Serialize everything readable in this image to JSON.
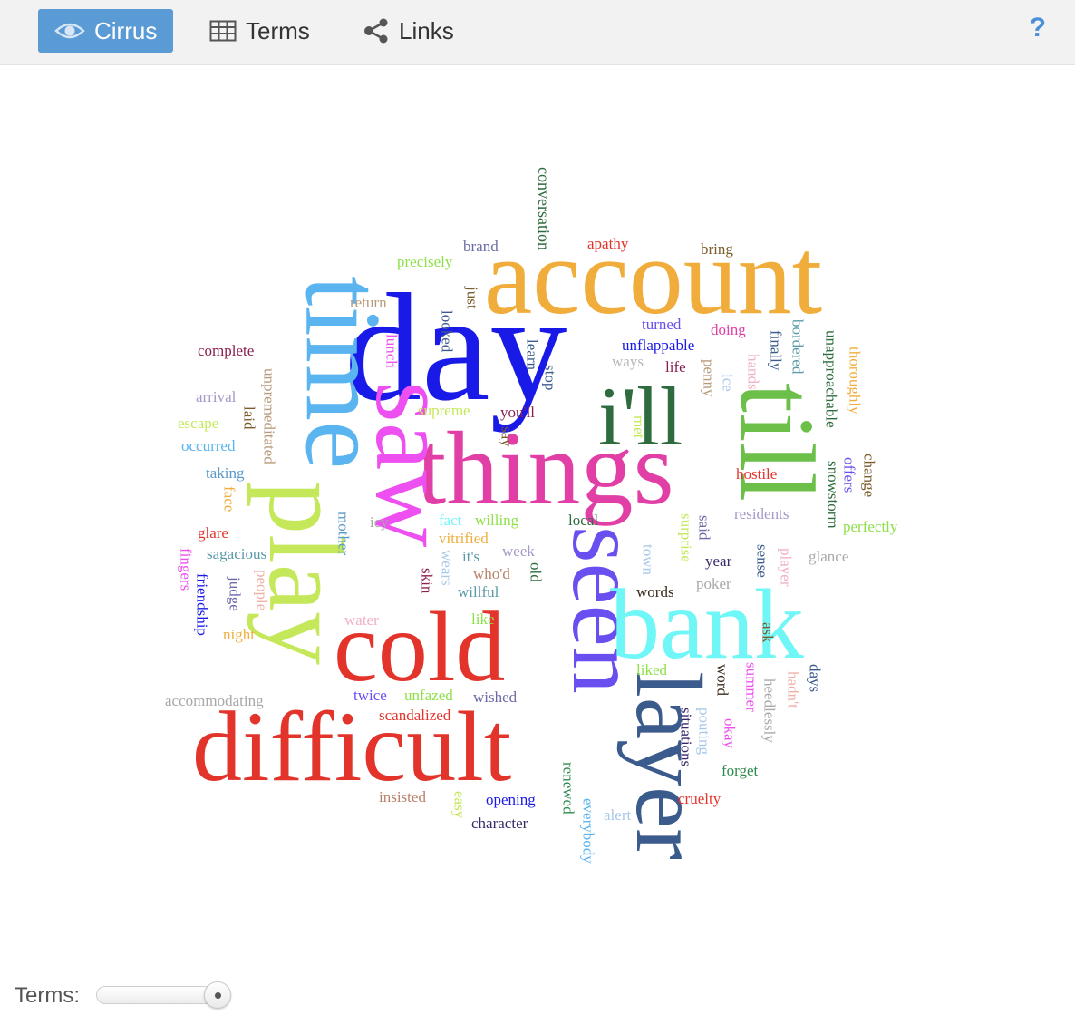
{
  "toolbar": {
    "tabs": [
      {
        "label": "Cirrus",
        "icon": "eye-icon",
        "active": true
      },
      {
        "label": "Terms",
        "icon": "table-icon",
        "active": false
      },
      {
        "label": "Links",
        "icon": "share-icon",
        "active": false
      }
    ],
    "help_label": "?"
  },
  "colors": {
    "active_tab": "#5b9bd5",
    "toolbar_bg": "#f2f2f2",
    "help": "#4a90d9"
  },
  "cloud": {
    "words": [
      {
        "text": "day",
        "color": "#1a1ae8"
      },
      {
        "text": "account",
        "color": "#f0ad3c"
      },
      {
        "text": "time",
        "color": "#5ab4f0"
      },
      {
        "text": "things",
        "color": "#e23fa6"
      },
      {
        "text": "i'll",
        "color": "#2e6b3e"
      },
      {
        "text": "till",
        "color": "#6cc04a"
      },
      {
        "text": "saw",
        "color": "#ee4ff0"
      },
      {
        "text": "play",
        "color": "#c5e85a"
      },
      {
        "text": "seen",
        "color": "#6a4ff0"
      },
      {
        "text": "bank",
        "color": "#6ff7f7"
      },
      {
        "text": "cold",
        "color": "#e3342c"
      },
      {
        "text": "difficult",
        "color": "#e3342c"
      },
      {
        "text": "layer",
        "color": "#3a5b8c"
      },
      {
        "text": "conversation",
        "color": "#2e6b3e"
      },
      {
        "text": "brand",
        "color": "#6a6aa8"
      },
      {
        "text": "apathy",
        "color": "#e3342c"
      },
      {
        "text": "bring",
        "color": "#7a5b2a"
      },
      {
        "text": "precisely",
        "color": "#8ee04a"
      },
      {
        "text": "return",
        "color": "#b89a7a"
      },
      {
        "text": "just",
        "color": "#7a5b2a"
      },
      {
        "text": "turned",
        "color": "#6a4ff0"
      },
      {
        "text": "doing",
        "color": "#e23fa6"
      },
      {
        "text": "complete",
        "color": "#8a2050"
      },
      {
        "text": "lunch",
        "color": "#ee4ff0"
      },
      {
        "text": "looked",
        "color": "#3a5b8c"
      },
      {
        "text": "learn",
        "color": "#3a5b8c"
      },
      {
        "text": "unflappable",
        "color": "#1a1ae8"
      },
      {
        "text": "finally",
        "color": "#3a5b8c"
      },
      {
        "text": "bordered",
        "color": "#5a9aa8"
      },
      {
        "text": "unapproachable",
        "color": "#2e6b3e"
      },
      {
        "text": "thoroughly",
        "color": "#f0ad3c"
      },
      {
        "text": "ways",
        "color": "#b8b8b8"
      },
      {
        "text": "life",
        "color": "#8a2050"
      },
      {
        "text": "penny",
        "color": "#b89a7a"
      },
      {
        "text": "ice",
        "color": "#a8c8e8"
      },
      {
        "text": "hands",
        "color": "#f0b0c8"
      },
      {
        "text": "stop",
        "color": "#3a5b8c"
      },
      {
        "text": "arrival",
        "color": "#a898c8"
      },
      {
        "text": "unpremeditated",
        "color": "#b89a7a"
      },
      {
        "text": "supreme",
        "color": "#c5e85a"
      },
      {
        "text": "you'll",
        "color": "#8a2050"
      },
      {
        "text": "laid",
        "color": "#7a5b2a"
      },
      {
        "text": "escape",
        "color": "#c5e85a"
      },
      {
        "text": "met",
        "color": "#c5e85a"
      },
      {
        "text": "say",
        "color": "#7a5b2a"
      },
      {
        "text": "occurred",
        "color": "#5ab4f0"
      },
      {
        "text": "hostile",
        "color": "#e3342c"
      },
      {
        "text": "snowstorm",
        "color": "#2e6b3e"
      },
      {
        "text": "offers",
        "color": "#6a4ff0"
      },
      {
        "text": "change",
        "color": "#7a5b2a"
      },
      {
        "text": "taking",
        "color": "#5a9ac8"
      },
      {
        "text": "face",
        "color": "#f0ad3c"
      },
      {
        "text": "residents",
        "color": "#a898c8"
      },
      {
        "text": "icy",
        "color": "#a8a8a8"
      },
      {
        "text": "fact",
        "color": "#6ff7f7"
      },
      {
        "text": "willing",
        "color": "#8ee04a"
      },
      {
        "text": "local",
        "color": "#2e6b3e"
      },
      {
        "text": "perfectly",
        "color": "#8ee04a"
      },
      {
        "text": "glare",
        "color": "#e3342c"
      },
      {
        "text": "mother",
        "color": "#5a9ac8"
      },
      {
        "text": "vitrified",
        "color": "#f0ad3c"
      },
      {
        "text": "surprise",
        "color": "#c5e85a"
      },
      {
        "text": "said",
        "color": "#6a6aa8"
      },
      {
        "text": "sagacious",
        "color": "#5a9aa8"
      },
      {
        "text": "week",
        "color": "#a898c8"
      },
      {
        "text": "it's",
        "color": "#5a9aa8"
      },
      {
        "text": "town",
        "color": "#a8c8e8"
      },
      {
        "text": "year",
        "color": "#3a2a6a"
      },
      {
        "text": "sense",
        "color": "#3a5b8c"
      },
      {
        "text": "player",
        "color": "#f0b0c8"
      },
      {
        "text": "glance",
        "color": "#a8a8a8"
      },
      {
        "text": "fingers",
        "color": "#ee4ff0"
      },
      {
        "text": "friendship",
        "color": "#1a1ae8"
      },
      {
        "text": "judge",
        "color": "#6a6aa8"
      },
      {
        "text": "people",
        "color": "#f0b0a8"
      },
      {
        "text": "skin",
        "color": "#8a2050"
      },
      {
        "text": "wears",
        "color": "#a8c8e8"
      },
      {
        "text": "who'd",
        "color": "#b8826a"
      },
      {
        "text": "old",
        "color": "#2e6b3e"
      },
      {
        "text": "poker",
        "color": "#a8a8a8"
      },
      {
        "text": "willful",
        "color": "#5a9aa8"
      },
      {
        "text": "words",
        "color": "#3a2a1a"
      },
      {
        "text": "water",
        "color": "#f0b0c8"
      },
      {
        "text": "like",
        "color": "#8ee04a"
      },
      {
        "text": "night",
        "color": "#f0ad3c"
      },
      {
        "text": "ask",
        "color": "#7a5b2a"
      },
      {
        "text": "liked",
        "color": "#8ee04a"
      },
      {
        "text": "word",
        "color": "#3a2a1a"
      },
      {
        "text": "summer",
        "color": "#ee4ff0"
      },
      {
        "text": "heedlessly",
        "color": "#a8a8a8"
      },
      {
        "text": "hadn't",
        "color": "#f0b0a8"
      },
      {
        "text": "days",
        "color": "#3a5b8c"
      },
      {
        "text": "accommodating",
        "color": "#a8a8a8"
      },
      {
        "text": "twice",
        "color": "#6a4ff0"
      },
      {
        "text": "unfazed",
        "color": "#8ee04a"
      },
      {
        "text": "wished",
        "color": "#6a6aa8"
      },
      {
        "text": "scandalized",
        "color": "#e3342c"
      },
      {
        "text": "situations",
        "color": "#3a2a6a"
      },
      {
        "text": "pouting",
        "color": "#a8c8e8"
      },
      {
        "text": "okay",
        "color": "#ee4ff0"
      },
      {
        "text": "forget",
        "color": "#2e8a4e"
      },
      {
        "text": "insisted",
        "color": "#b8826a"
      },
      {
        "text": "easy",
        "color": "#c5e85a"
      },
      {
        "text": "opening",
        "color": "#1a1ae8"
      },
      {
        "text": "renewed",
        "color": "#2e8a4e"
      },
      {
        "text": "everybody",
        "color": "#5ab4f0"
      },
      {
        "text": "alert",
        "color": "#a8c8e8"
      },
      {
        "text": "cruelty",
        "color": "#e3342c"
      },
      {
        "text": "character",
        "color": "#3a2a6a"
      }
    ]
  },
  "footer": {
    "terms_label": "Terms:",
    "terms_slider_fraction": 1.0
  }
}
